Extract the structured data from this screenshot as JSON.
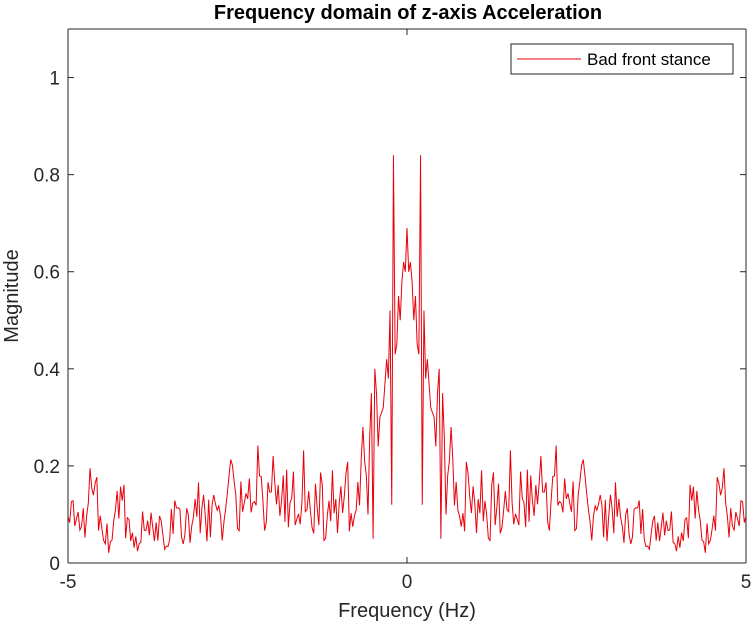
{
  "chart_data": {
    "type": "line",
    "title": "Frequency domain of z-axis Acceleration",
    "xlabel": "Frequency (Hz)",
    "ylabel": "Magnitude",
    "xlim": [
      -5,
      5
    ],
    "ylim": [
      0,
      1.1
    ],
    "xticks": [
      -5,
      0,
      5
    ],
    "xtick_labels": [
      "-5",
      "0",
      "5"
    ],
    "yticks": [
      0,
      0.2,
      0.4,
      0.6,
      0.8,
      1
    ],
    "ytick_labels": [
      "0",
      "0.2",
      "0.4",
      "0.6",
      "0.8",
      "1"
    ],
    "grid": false,
    "legend_position": "top-right",
    "series": [
      {
        "name": "Bad front stance",
        "color": "#e8000b",
        "symmetric_about_zero": true,
        "x_step": 0.025,
        "x": [
          0,
          0.025,
          0.05,
          0.075,
          0.1,
          0.125,
          0.15,
          0.175,
          0.2,
          0.225,
          0.25,
          0.275,
          0.3,
          0.325,
          0.35,
          0.375,
          0.4,
          0.425,
          0.45,
          0.475,
          0.5,
          0.525,
          0.55,
          0.575,
          0.6,
          0.625,
          0.65,
          0.7,
          0.75,
          0.8,
          0.9,
          1.0,
          1.1,
          1.2,
          1.3,
          1.4,
          1.5,
          1.6,
          1.7,
          1.8,
          1.9,
          1.95,
          2.0,
          2.05,
          2.1,
          2.2,
          2.3,
          2.4,
          2.5,
          2.6,
          2.7,
          2.8,
          2.9,
          3.0,
          3.2,
          3.4,
          3.6,
          3.8,
          4.0,
          4.2,
          4.4,
          4.6,
          4.8,
          5.0
        ],
        "y": [
          0.69,
          0.6,
          0.62,
          0.58,
          0.5,
          0.55,
          0.45,
          0.43,
          0.84,
          0.12,
          0.52,
          0.38,
          0.42,
          0.37,
          0.32,
          0.31,
          0.3,
          0.24,
          0.35,
          0.4,
          0.05,
          0.35,
          0.26,
          0.1,
          0.18,
          0.21,
          0.28,
          0.15,
          0.24,
          0.1,
          0.21,
          0.13,
          0.2,
          0.1,
          0.17,
          0.1,
          0.21,
          0.12,
          0.2,
          0.15,
          0.18,
          0.16,
          0.31,
          0.22,
          0.17,
          0.2,
          0.14,
          0.21,
          0.12,
          0.18,
          0.1,
          0.2,
          0.09,
          0.16,
          0.09,
          0.12,
          0.07,
          0.14,
          0.06,
          0.17,
          0.05,
          0.22,
          0.08,
          0.12
        ]
      }
    ]
  }
}
